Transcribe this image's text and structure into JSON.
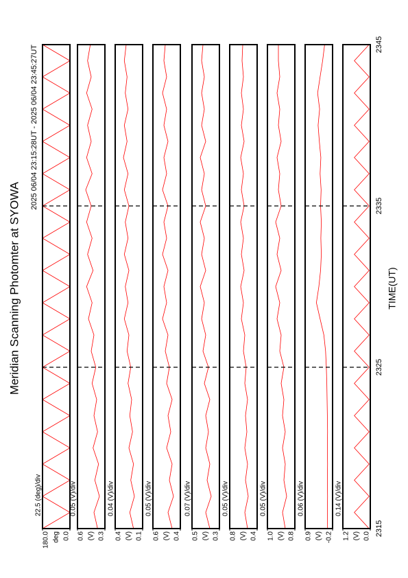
{
  "title": "Meridian Scanning Photomter at SYOWA",
  "subtitle": "2025 06/04 23:15:28UT - 2025 06/04 23:45:27UT",
  "xlabel": "TIME(UT)",
  "chart_data": [
    {
      "type": "line",
      "scale_label": "22.5 (deg)/div",
      "ylabel": "deg",
      "ylim": [
        0,
        180
      ],
      "yticks": [
        {
          "value": 0,
          "label": "0.0"
        },
        {
          "value": 180,
          "label": "180.0"
        }
      ],
      "x": [
        2315,
        2316,
        2317,
        2318,
        2319,
        2320,
        2321,
        2322,
        2323,
        2324,
        2325,
        2326,
        2327,
        2328,
        2329,
        2330,
        2331,
        2332,
        2333,
        2334,
        2335,
        2336,
        2337,
        2338,
        2339,
        2340,
        2341,
        2342,
        2343,
        2344,
        2345
      ],
      "series": [
        {
          "color": "#ff0000",
          "values": [
            180,
            0,
            180,
            0,
            180,
            0,
            180,
            0,
            180,
            0,
            180,
            0,
            180,
            0,
            180,
            0,
            180,
            0,
            180,
            0,
            180,
            0,
            180,
            0,
            180,
            0,
            180,
            0,
            180,
            0,
            180
          ]
        }
      ]
    },
    {
      "type": "line",
      "scale_label": "0.05 (V)/div",
      "ylabel": "(V)",
      "ylim": [
        0.3,
        0.6
      ],
      "yticks": [
        0.3,
        0.6
      ],
      "x": [
        2315,
        2316,
        2317,
        2318,
        2319,
        2320,
        2321,
        2322,
        2323,
        2324,
        2325,
        2326,
        2327,
        2328,
        2329,
        2330,
        2331,
        2332,
        2333,
        2334,
        2335,
        2336,
        2337,
        2338,
        2339,
        2340,
        2341,
        2342,
        2343,
        2344,
        2345
      ],
      "series": [
        {
          "color": "#ff0000",
          "values": [
            0.38,
            0.42,
            0.36,
            0.41,
            0.37,
            0.43,
            0.38,
            0.42,
            0.39,
            0.44,
            0.4,
            0.45,
            0.42,
            0.48,
            0.44,
            0.5,
            0.43,
            0.49,
            0.44,
            0.5,
            0.45,
            0.51,
            0.44,
            0.5,
            0.45,
            0.49,
            0.44,
            0.5,
            0.45,
            0.49,
            0.46
          ]
        }
      ]
    },
    {
      "type": "line",
      "scale_label": "0.04 (V)/div",
      "ylabel": "(V)",
      "ylim": [
        0.1,
        0.4
      ],
      "yticks": [
        0.1,
        0.4
      ],
      "x": [
        2315,
        2316,
        2317,
        2318,
        2319,
        2320,
        2321,
        2322,
        2323,
        2324,
        2325,
        2326,
        2327,
        2328,
        2329,
        2330,
        2331,
        2332,
        2333,
        2334,
        2335,
        2336,
        2337,
        2338,
        2339,
        2340,
        2341,
        2342,
        2343,
        2344,
        2345
      ],
      "series": [
        {
          "color": "#ff0000",
          "values": [
            0.2,
            0.24,
            0.19,
            0.23,
            0.2,
            0.25,
            0.21,
            0.24,
            0.22,
            0.26,
            0.23,
            0.27,
            0.25,
            0.3,
            0.26,
            0.29,
            0.25,
            0.3,
            0.26,
            0.29,
            0.25,
            0.3,
            0.26,
            0.31,
            0.27,
            0.3,
            0.26,
            0.29,
            0.27,
            0.3,
            0.28
          ]
        }
      ]
    },
    {
      "type": "line",
      "scale_label": "0.05 (V)/div",
      "ylabel": "(V)",
      "ylim": [
        0.4,
        0.6
      ],
      "yticks": [
        0.4,
        0.6
      ],
      "x": [
        2315,
        2316,
        2317,
        2318,
        2319,
        2320,
        2321,
        2322,
        2323,
        2324,
        2325,
        2326,
        2327,
        2328,
        2329,
        2330,
        2331,
        2332,
        2333,
        2334,
        2335,
        2336,
        2337,
        2338,
        2339,
        2340,
        2341,
        2342,
        2343,
        2344,
        2345
      ],
      "series": [
        {
          "color": "#ff0000",
          "values": [
            0.46,
            0.49,
            0.45,
            0.48,
            0.46,
            0.5,
            0.47,
            0.49,
            0.46,
            0.5,
            0.48,
            0.51,
            0.49,
            0.53,
            0.5,
            0.52,
            0.49,
            0.53,
            0.5,
            0.52,
            0.49,
            0.53,
            0.5,
            0.52,
            0.49,
            0.52,
            0.5,
            0.53,
            0.5,
            0.52,
            0.51
          ]
        }
      ]
    },
    {
      "type": "line",
      "scale_label": "0.07 (V)/div",
      "ylabel": "(V)",
      "ylim": [
        0.3,
        0.5
      ],
      "yticks": [
        0.3,
        0.5
      ],
      "x": [
        2315,
        2316,
        2317,
        2318,
        2319,
        2320,
        2321,
        2322,
        2323,
        2324,
        2325,
        2326,
        2327,
        2328,
        2329,
        2330,
        2331,
        2332,
        2333,
        2334,
        2335,
        2336,
        2337,
        2338,
        2339,
        2340,
        2341,
        2342,
        2343,
        2344,
        2345
      ],
      "series": [
        {
          "color": "#ff0000",
          "values": [
            0.37,
            0.4,
            0.36,
            0.39,
            0.37,
            0.4,
            0.38,
            0.4,
            0.37,
            0.41,
            0.38,
            0.42,
            0.4,
            0.43,
            0.41,
            0.44,
            0.4,
            0.43,
            0.41,
            0.44,
            0.4,
            0.43,
            0.41,
            0.44,
            0.4,
            0.43,
            0.41,
            0.43,
            0.41,
            0.43,
            0.42
          ]
        }
      ]
    },
    {
      "type": "line",
      "scale_label": "0.05 (V)/div",
      "ylabel": "(V)",
      "ylim": [
        0.4,
        0.8
      ],
      "yticks": [
        0.4,
        0.8
      ],
      "x": [
        2315,
        2316,
        2317,
        2318,
        2319,
        2320,
        2321,
        2322,
        2323,
        2324,
        2325,
        2326,
        2327,
        2328,
        2329,
        2330,
        2331,
        2332,
        2333,
        2334,
        2335,
        2336,
        2337,
        2338,
        2339,
        2340,
        2341,
        2342,
        2343,
        2344,
        2345
      ],
      "series": [
        {
          "color": "#ff0000",
          "values": [
            0.54,
            0.58,
            0.53,
            0.57,
            0.54,
            0.58,
            0.55,
            0.57,
            0.54,
            0.58,
            0.56,
            0.6,
            0.58,
            0.63,
            0.6,
            0.64,
            0.59,
            0.63,
            0.6,
            0.64,
            0.59,
            0.63,
            0.6,
            0.64,
            0.59,
            0.63,
            0.6,
            0.63,
            0.6,
            0.62,
            0.61
          ]
        }
      ]
    },
    {
      "type": "line",
      "scale_label": "0.05 (V)/div",
      "ylabel": "(V)",
      "ylim": [
        0.8,
        1.0
      ],
      "yticks": [
        0.8,
        {
          "value": 1.0,
          "label": "1.0"
        }
      ],
      "x": [
        2315,
        2316,
        2317,
        2318,
        2319,
        2320,
        2321,
        2322,
        2323,
        2324,
        2325,
        2326,
        2327,
        2328,
        2329,
        2330,
        2331,
        2332,
        2333,
        2334,
        2335,
        2336,
        2337,
        2338,
        2339,
        2340,
        2341,
        2342,
        2343,
        2344,
        2345
      ],
      "series": [
        {
          "color": "#ff0000",
          "values": [
            0.87,
            0.89,
            0.86,
            0.88,
            0.87,
            0.89,
            0.87,
            0.89,
            0.88,
            0.9,
            0.88,
            0.91,
            0.9,
            0.93,
            0.91,
            0.94,
            0.9,
            0.93,
            0.91,
            0.94,
            0.9,
            0.92,
            0.91,
            0.93,
            0.9,
            0.92,
            0.91,
            0.93,
            0.91,
            0.92,
            0.92
          ]
        }
      ]
    },
    {
      "type": "line",
      "scale_label": "0.06 (V)/div",
      "ylabel": "(V)",
      "ylim": [
        -0.2,
        0.9
      ],
      "yticks": [
        -0.2,
        0.9
      ],
      "x": [
        2315,
        2316,
        2317,
        2318,
        2319,
        2320,
        2321,
        2322,
        2323,
        2324,
        2325,
        2326,
        2327,
        2328,
        2329,
        2330,
        2331,
        2332,
        2333,
        2334,
        2335,
        2336,
        2337,
        2338,
        2339,
        2340,
        2341,
        2342,
        2343,
        2344,
        2345
      ],
      "series": [
        {
          "color": "#ff0000",
          "values": [
            0.0,
            0.01,
            0.0,
            0.01,
            0.0,
            0.01,
            0.0,
            0.01,
            0.02,
            0.03,
            0.05,
            0.08,
            0.15,
            0.3,
            0.45,
            0.35,
            0.28,
            0.25,
            0.27,
            0.25,
            0.28,
            0.26,
            0.3,
            0.27,
            0.33,
            0.38,
            0.32,
            0.4,
            0.3,
            0.2,
            0.12
          ]
        }
      ]
    },
    {
      "type": "line",
      "scale_label": "0.14 (V)/div",
      "ylabel": "(V)",
      "ylim": [
        0.0,
        1.2
      ],
      "yticks": [
        {
          "value": 0,
          "label": "0.0"
        },
        1.2
      ],
      "xlim": [
        2315,
        2345
      ],
      "xticks": [
        2315,
        2325,
        2335,
        2345
      ],
      "x": [
        2315,
        2316,
        2317,
        2318,
        2319,
        2320,
        2321,
        2322,
        2323,
        2324,
        2325,
        2326,
        2327,
        2328,
        2329,
        2330,
        2331,
        2332,
        2333,
        2334,
        2335,
        2336,
        2337,
        2338,
        2339,
        2340,
        2341,
        2342,
        2343,
        2344,
        2345
      ],
      "series": [
        {
          "color": "#ff0000",
          "values": [
            0.05,
            0.7,
            0.05,
            0.7,
            0.05,
            0.7,
            0.05,
            0.7,
            0.05,
            0.7,
            0.05,
            0.7,
            0.05,
            0.7,
            0.05,
            0.7,
            0.05,
            0.7,
            0.05,
            0.7,
            0.05,
            0.7,
            0.05,
            0.7,
            0.05,
            0.7,
            0.05,
            0.7,
            0.05,
            0.7,
            0.05
          ]
        }
      ]
    }
  ]
}
